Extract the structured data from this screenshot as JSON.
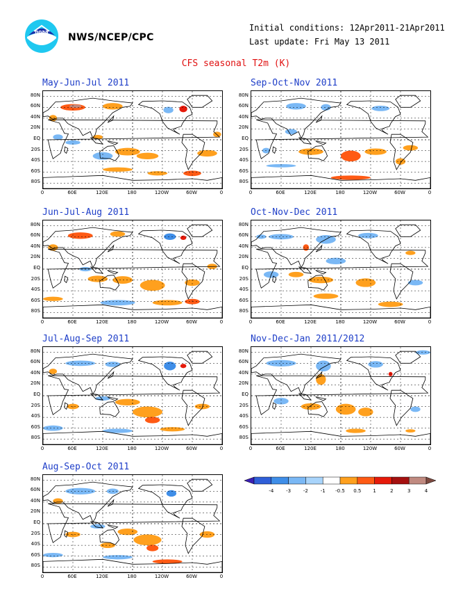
{
  "header": {
    "agency": "NWS/NCEP/CPC",
    "initial_conditions": "Initial conditions: 12Apr2011-21Apr2011",
    "last_update": "Last update: Fri May 13 2011",
    "title": "CFS seasonal T2m (K)"
  },
  "axes": {
    "lat_labels": [
      "80N",
      "60N",
      "40N",
      "20N",
      "EQ",
      "20S",
      "40S",
      "60S",
      "80S"
    ],
    "lon_labels": [
      "0",
      "60E",
      "120E",
      "180",
      "120W",
      "60W",
      "0"
    ]
  },
  "panels": [
    {
      "id": "mjj",
      "title": "May-Jun-Jul 2011"
    },
    {
      "id": "son",
      "title": "Sep-Oct-Nov 2011"
    },
    {
      "id": "jja",
      "title": "Jun-Jul-Aug 2011"
    },
    {
      "id": "ond",
      "title": "Oct-Nov-Dec 2011"
    },
    {
      "id": "jas",
      "title": "Jul-Aug-Sep 2011"
    },
    {
      "id": "ndj",
      "title": "Nov-Dec-Jan 2011/2012"
    },
    {
      "id": "aso",
      "title": "Aug-Sep-Oct 2011"
    }
  ],
  "legend": {
    "ticks": [
      "-4",
      "-3",
      "-2",
      "-1",
      "-0.5",
      "0.5",
      "1",
      "2",
      "3",
      "4"
    ],
    "colors": [
      "#3b1fb5",
      "#2f5fd8",
      "#3f8ee8",
      "#7ab8f5",
      "#a8d4fb",
      "#ffffff",
      "#ffa01e",
      "#ff5a14",
      "#e61a0a",
      "#a51010",
      "#c08a80",
      "#7d4a40"
    ]
  }
}
